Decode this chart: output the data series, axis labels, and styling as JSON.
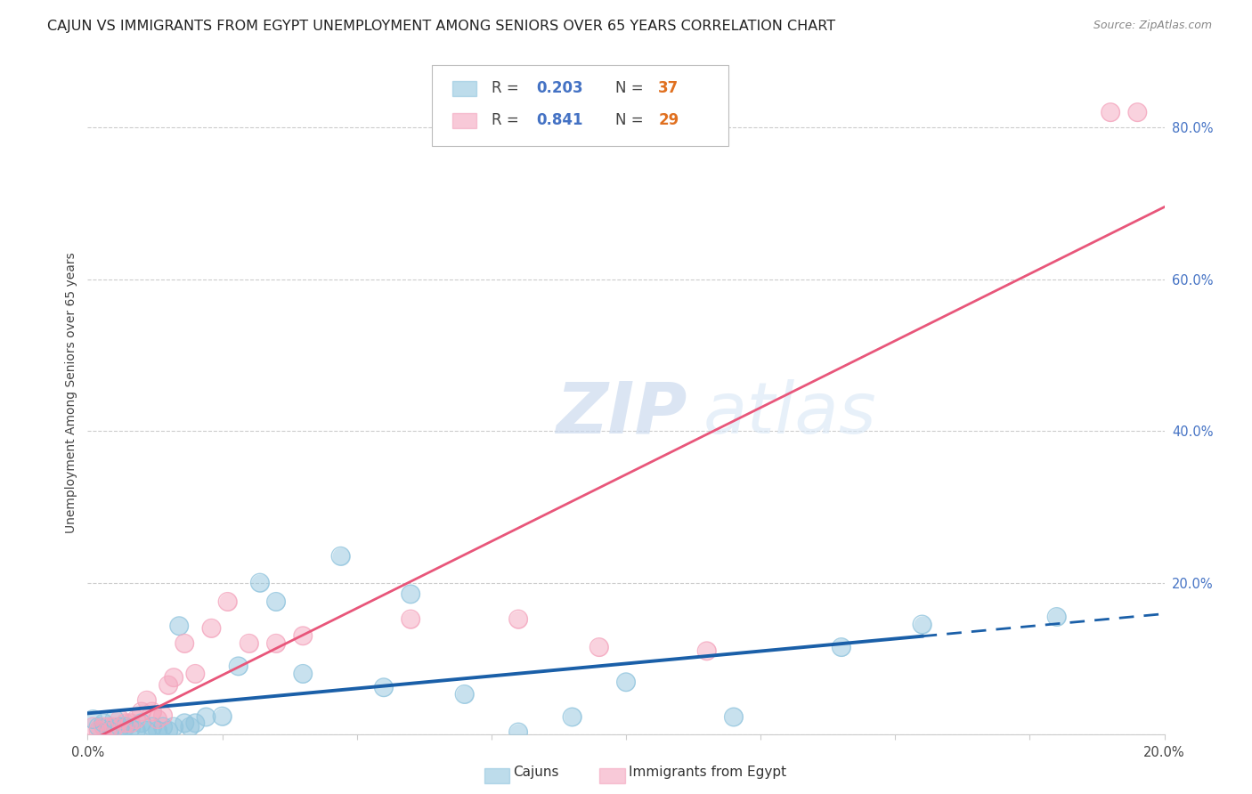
{
  "title": "CAJUN VS IMMIGRANTS FROM EGYPT UNEMPLOYMENT AMONG SENIORS OVER 65 YEARS CORRELATION CHART",
  "source": "Source: ZipAtlas.com",
  "ylabel_label": "Unemployment Among Seniors over 65 years",
  "watermark_zip": "ZIP",
  "watermark_atlas": "atlas",
  "legend_cajun": "Cajuns",
  "legend_egypt": "Immigrants from Egypt",
  "r_cajun": 0.203,
  "n_cajun": 37,
  "r_egypt": 0.841,
  "n_egypt": 29,
  "xlim": [
    0.0,
    0.2
  ],
  "ylim": [
    0.0,
    0.9
  ],
  "xticks": [
    0.0,
    0.025,
    0.05,
    0.075,
    0.1,
    0.125,
    0.15,
    0.175,
    0.2
  ],
  "ytick_vals_right": [
    0.0,
    0.2,
    0.4,
    0.6,
    0.8
  ],
  "ytick_labels_right": [
    "",
    "20.0%",
    "40.0%",
    "60.0%",
    "80.0%"
  ],
  "color_cajun": "#92c5de",
  "color_egypt": "#f4a6be",
  "line_color_cajun": "#1a5fa8",
  "line_color_egypt": "#e8567a",
  "background_color": "#ffffff",
  "title_color": "#222222",
  "title_fontsize": 11.5,
  "source_fontsize": 9,
  "cajun_x": [
    0.001,
    0.002,
    0.003,
    0.004,
    0.005,
    0.006,
    0.007,
    0.008,
    0.009,
    0.01,
    0.011,
    0.012,
    0.013,
    0.014,
    0.015,
    0.016,
    0.017,
    0.018,
    0.019,
    0.02,
    0.022,
    0.025,
    0.028,
    0.032,
    0.035,
    0.04,
    0.047,
    0.055,
    0.06,
    0.07,
    0.08,
    0.09,
    0.1,
    0.12,
    0.14,
    0.155,
    0.18
  ],
  "cajun_y": [
    0.02,
    0.01,
    0.015,
    0.005,
    0.02,
    0.01,
    0.01,
    0.008,
    0.005,
    0.015,
    0.005,
    0.01,
    0.005,
    0.01,
    0.005,
    0.01,
    0.143,
    0.015,
    0.01,
    0.015,
    0.023,
    0.024,
    0.09,
    0.2,
    0.175,
    0.08,
    0.235,
    0.062,
    0.185,
    0.053,
    0.003,
    0.023,
    0.069,
    0.023,
    0.115,
    0.145,
    0.155
  ],
  "egypt_x": [
    0.001,
    0.002,
    0.003,
    0.004,
    0.005,
    0.006,
    0.007,
    0.008,
    0.009,
    0.01,
    0.011,
    0.012,
    0.013,
    0.014,
    0.015,
    0.016,
    0.018,
    0.02,
    0.023,
    0.026,
    0.03,
    0.035,
    0.04,
    0.06,
    0.08,
    0.095,
    0.115,
    0.19,
    0.195
  ],
  "egypt_y": [
    0.01,
    0.005,
    0.01,
    0.01,
    0.01,
    0.02,
    0.015,
    0.015,
    0.02,
    0.03,
    0.045,
    0.03,
    0.02,
    0.025,
    0.065,
    0.075,
    0.12,
    0.08,
    0.14,
    0.175,
    0.12,
    0.12,
    0.13,
    0.152,
    0.152,
    0.115,
    0.11,
    0.82,
    0.82
  ]
}
